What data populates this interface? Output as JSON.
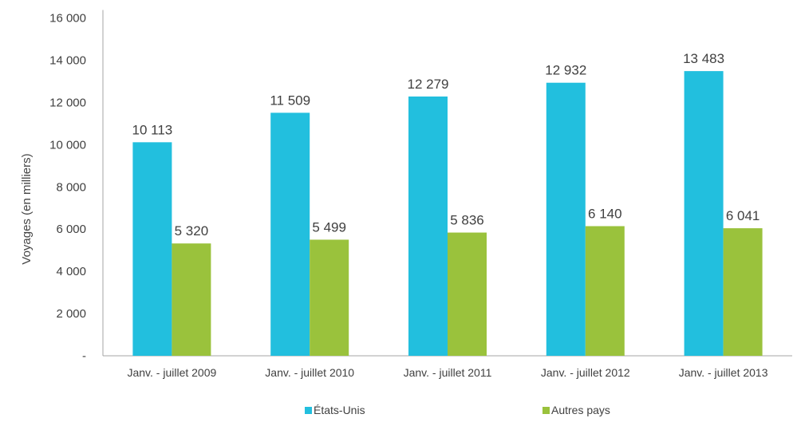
{
  "chart_data": {
    "type": "bar",
    "categories": [
      "Janv. - juillet 2009",
      "Janv. - juillet 2010",
      "Janv. - juillet 2011",
      "Janv. - juillet 2012",
      "Janv. - juillet 2013"
    ],
    "series": [
      {
        "name": "États-Unis",
        "color": "#22bfde",
        "values": [
          10113,
          11509,
          12279,
          12932,
          13483
        ],
        "labels": [
          "10 113",
          "11 509",
          "12 279",
          "12 932",
          "13 483"
        ]
      },
      {
        "name": "Autres pays",
        "color": "#9ac23c",
        "values": [
          5320,
          5499,
          5836,
          6140,
          6041
        ],
        "labels": [
          "5 320",
          "5 499",
          "5 836",
          "6 140",
          "6 041"
        ]
      }
    ],
    "ylabel": "Voyages (en milliers)",
    "xlabel": "",
    "ylim": [
      0,
      16000
    ],
    "yticks": [
      0,
      2000,
      4000,
      6000,
      8000,
      10000,
      12000,
      14000,
      16000
    ],
    "ytick_labels": [
      "-",
      "2 000",
      "4 000",
      "6 000",
      "8 000",
      "10 000",
      "12 000",
      "14 000",
      "16 000"
    ],
    "grid": false,
    "legend_position": "bottom"
  }
}
